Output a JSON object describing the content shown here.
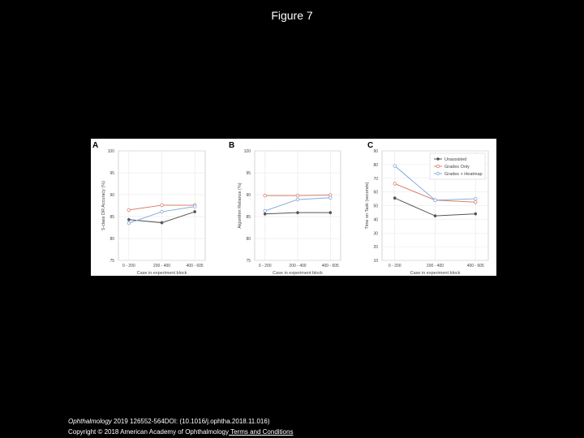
{
  "slide": {
    "title": "Figure 7"
  },
  "footer": {
    "journal": "Ophthalmology",
    "citation": " 2019 126552-564DOI: (10.1016/j.ophtha.2018.11.016) ",
    "copyright": "Copyright © 2018 American Academy of Ophthalmology",
    "terms_link": " Terms and Conditions"
  },
  "colors": {
    "unassisted": "#555555",
    "grades_only": "#d9826e",
    "grades_heatmap": "#86a9e0"
  },
  "legend": [
    "Unassisted",
    "Grades Only",
    "Grades + Heatmap"
  ],
  "chart_data": [
    {
      "panel": "A",
      "type": "line",
      "categories": [
        "0 - 200",
        "200 - 400",
        "400 - 605"
      ],
      "xlabel": "Case in experiment block",
      "ylabel": "5-class DR Accuracy (%)",
      "ylim": [
        75,
        100
      ],
      "yticks": [
        75,
        80,
        85,
        90,
        95,
        100
      ],
      "series": [
        {
          "name": "Unassisted",
          "values": [
            84.3,
            83.6,
            86.1
          ]
        },
        {
          "name": "Grades Only",
          "values": [
            86.5,
            87.6,
            87.6
          ]
        },
        {
          "name": "Grades + Heatmap",
          "values": [
            83.5,
            86.1,
            87.3
          ]
        }
      ]
    },
    {
      "panel": "B",
      "type": "line",
      "categories": [
        "0 - 200",
        "200 - 400",
        "400 - 605"
      ],
      "xlabel": "Case in experiment block",
      "ylabel": "Algorithm Reliance (%)",
      "ylim": [
        75,
        100
      ],
      "yticks": [
        75,
        80,
        85,
        90,
        95,
        100
      ],
      "series": [
        {
          "name": "Grades Only",
          "values": [
            89.8,
            89.8,
            89.9
          ]
        },
        {
          "name": "Grades + Heatmap",
          "values": [
            86.3,
            88.9,
            89.3
          ]
        },
        {
          "name": "Unassisted",
          "values": [
            85.6,
            85.9,
            85.9
          ]
        }
      ]
    },
    {
      "panel": "C",
      "type": "line",
      "categories": [
        "0 - 200",
        "200 - 400",
        "400 - 605"
      ],
      "xlabel": "Case in experiment block",
      "ylabel": "Time on Task (seconds)",
      "ylim": [
        10,
        90
      ],
      "yticks": [
        10,
        20,
        30,
        40,
        50,
        60,
        70,
        80,
        90
      ],
      "legend_position": "top-right",
      "series": [
        {
          "name": "Unassisted",
          "values": [
            55.5,
            42.5,
            44
          ]
        },
        {
          "name": "Grades Only",
          "values": [
            66,
            54,
            52.5
          ]
        },
        {
          "name": "Grades + Heatmap",
          "values": [
            79,
            54,
            55
          ]
        }
      ]
    }
  ]
}
